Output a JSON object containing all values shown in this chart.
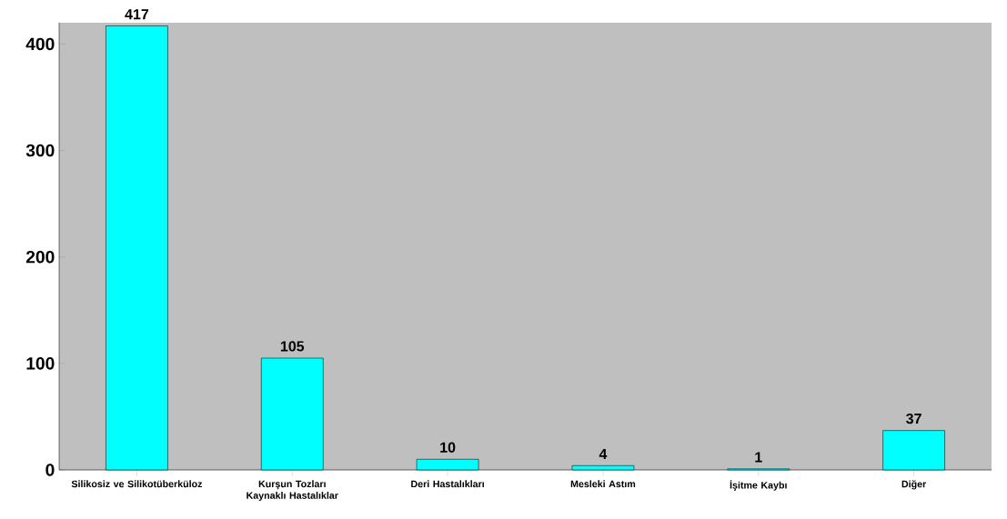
{
  "chart_data": {
    "type": "bar",
    "categories": [
      "Silikosiz ve Silikotüberküloz",
      "Kurşun Tozları Kaynaklı Hastalıklar",
      "Deri Hastalıkları",
      "Mesleki Astım",
      "İşitme Kaybı",
      "Diğer"
    ],
    "values": [
      417,
      105,
      10,
      4,
      1,
      37
    ],
    "color": "#00ffff",
    "ylim": [
      0,
      420
    ],
    "yticks": [
      0,
      100,
      200,
      300,
      400
    ],
    "grid": "y",
    "data_labels": true
  }
}
